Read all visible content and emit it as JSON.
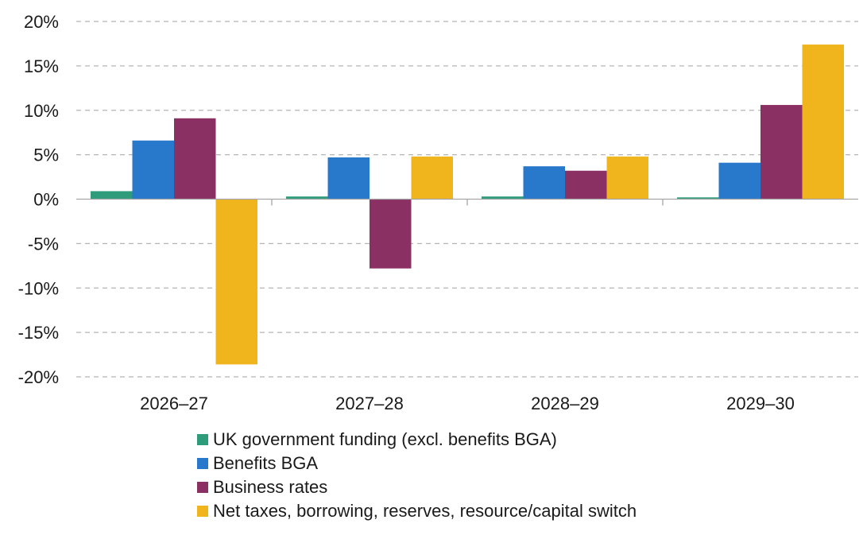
{
  "chart_data": {
    "type": "bar",
    "categories": [
      "2026–27",
      "2027–28",
      "2028–29",
      "2029–30"
    ],
    "series": [
      {
        "name": "UK government funding (excl. benefits BGA)",
        "color": "#2e9c7a",
        "values": [
          0.9,
          0.3,
          0.3,
          0.2
        ]
      },
      {
        "name": "Benefits BGA",
        "color": "#2878cb",
        "values": [
          6.6,
          4.7,
          3.7,
          4.1
        ]
      },
      {
        "name": "Business rates",
        "color": "#8b3062",
        "values": [
          9.1,
          -7.8,
          3.2,
          10.6
        ]
      },
      {
        "name": "Net taxes, borrowing, reserves, resource/capital switch",
        "color": "#f0b51c",
        "values": [
          -18.6,
          4.8,
          4.8,
          17.4
        ]
      }
    ],
    "ylim": [
      -20,
      20
    ],
    "yticks": [
      20,
      15,
      10,
      5,
      0,
      -5,
      -10,
      -15,
      -20
    ],
    "ytick_labels": [
      "20%",
      "15%",
      "10%",
      "5%",
      "0%",
      "-5%",
      "-10%",
      "-15%",
      "-20%"
    ],
    "grid": "horizontal dashed",
    "legend_position": "bottom",
    "title": "",
    "xlabel": "",
    "ylabel": ""
  }
}
